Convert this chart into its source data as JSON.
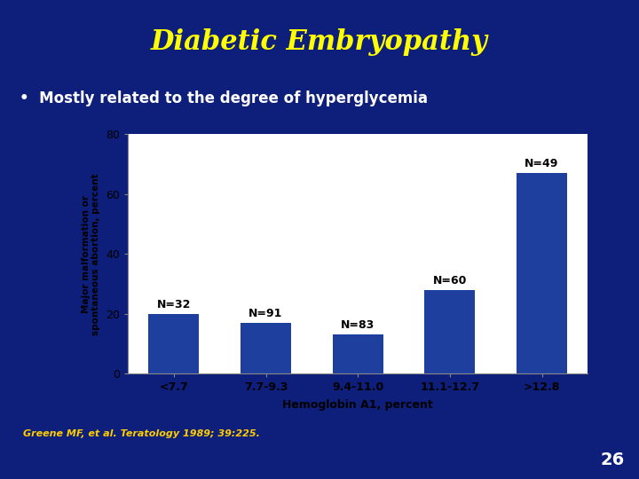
{
  "title": "Diabetic Embryopathy",
  "bullet": "Mostly related to the degree of hyperglycemia",
  "citation": "Greene MF, et al. Teratology 1989; 39:225.",
  "page_num": "26",
  "bg_color": "#0d1f7a",
  "chart_bg": "#ffffff",
  "bar_color": "#1e3f9e",
  "title_color": "#ffff00",
  "bullet_color": "#ffffff",
  "citation_color": "#ffcc00",
  "page_color": "#ffffff",
  "categories": [
    "<7.7",
    "7.7-9.3",
    "9.4-11.0",
    "11.1-12.7",
    ">12.8"
  ],
  "values": [
    20,
    17,
    13,
    28,
    67
  ],
  "n_labels": [
    "N=32",
    "N=91",
    "N=83",
    "N=60",
    "N=49"
  ],
  "xlabel": "Hemoglobin A1, percent",
  "ylabel": "Major malformation or\nspontaneous abortion, percent",
  "ylim": [
    0,
    80
  ],
  "yticks": [
    0,
    20,
    40,
    60,
    80
  ],
  "title_fontsize": 22,
  "bullet_fontsize": 12,
  "citation_fontsize": 8,
  "page_fontsize": 14,
  "bar_label_fontsize": 9,
  "axis_label_fontsize": 9,
  "tick_fontsize": 9,
  "ylabel_fontsize": 7.5
}
